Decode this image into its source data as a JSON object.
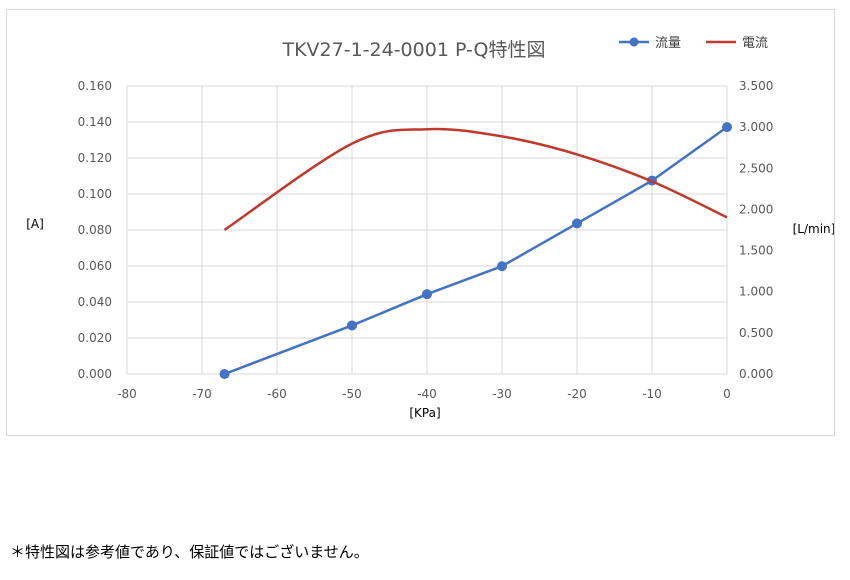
{
  "chart_data": {
    "type": "line",
    "title": "TKV27-1-24-0001 P-Q特性図",
    "xlabel": "[KPa]",
    "ylabel_left": "[A]",
    "ylabel_right": "[L/min]",
    "xlim": [
      -80,
      0
    ],
    "ylim_left": [
      0,
      0.16
    ],
    "ylim_right": [
      0,
      3.5
    ],
    "x_ticks": [
      "-80",
      "-70",
      "-60",
      "-50",
      "-40",
      "-30",
      "-20",
      "-10",
      "0"
    ],
    "y_left_ticks": [
      "0.000",
      "0.020",
      "0.040",
      "0.060",
      "0.080",
      "0.100",
      "0.120",
      "0.140",
      "0.160"
    ],
    "y_right_ticks": [
      "0.000",
      "0.500",
      "1.000",
      "1.500",
      "2.000",
      "2.500",
      "3.000",
      "3.500"
    ],
    "grid": true,
    "legend_position": "top-right",
    "series": [
      {
        "name": "流量",
        "axis": "right",
        "color": "#4472c4",
        "markers": true,
        "x": [
          -67,
          -50,
          -40,
          -30,
          -20,
          -10,
          0
        ],
        "y": [
          0.0,
          0.59,
          0.97,
          1.31,
          1.83,
          2.35,
          3.0
        ]
      },
      {
        "name": "電流",
        "axis": "left",
        "color": "#c0392b",
        "markers": false,
        "smooth": true,
        "x": [
          -67,
          -50,
          -40,
          -30,
          -20,
          -10,
          0
        ],
        "y": [
          0.08,
          0.128,
          0.136,
          0.132,
          0.122,
          0.107,
          0.087
        ]
      }
    ]
  },
  "footnote": "＊特性図は参考値であり、保証値ではございません。"
}
